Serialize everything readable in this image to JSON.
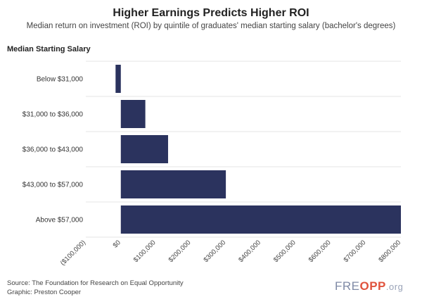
{
  "header": {
    "title": "Higher Earnings Predicts Higher ROI",
    "subtitle": "Median return on investment (ROI) by quintile of graduates' median starting salary (bachelor's degrees)"
  },
  "chart_data": {
    "type": "bar",
    "orientation": "horizontal",
    "ylabel": "Median Starting Salary",
    "categories": [
      "Below $31,000",
      "$31,000 to $36,000",
      "$36,000 to $43,000",
      "$43,000 to $57,000",
      "Above $57,000"
    ],
    "values": [
      -15000,
      70000,
      135000,
      300000,
      800000
    ],
    "xlim": [
      -100000,
      800000
    ],
    "x_ticks": [
      -100000,
      0,
      100000,
      200000,
      300000,
      400000,
      500000,
      600000,
      700000,
      800000
    ],
    "x_tick_labels": [
      "($100,000)",
      "$0",
      "$100,000",
      "$200,000",
      "$300,000",
      "$400,000",
      "$500,000",
      "$600,000",
      "$700,000",
      "$800,000"
    ],
    "grid": true,
    "bar_color": "#2b335e",
    "grid_color": "#e6e6e6"
  },
  "footer": {
    "source": "Source: The Foundation for Research on Equal Opportunity",
    "graphic": "Graphic: Preston Cooper"
  },
  "logo": {
    "text_start": "FRE",
    "text_accent": "OPP",
    "text_end": ".org"
  }
}
